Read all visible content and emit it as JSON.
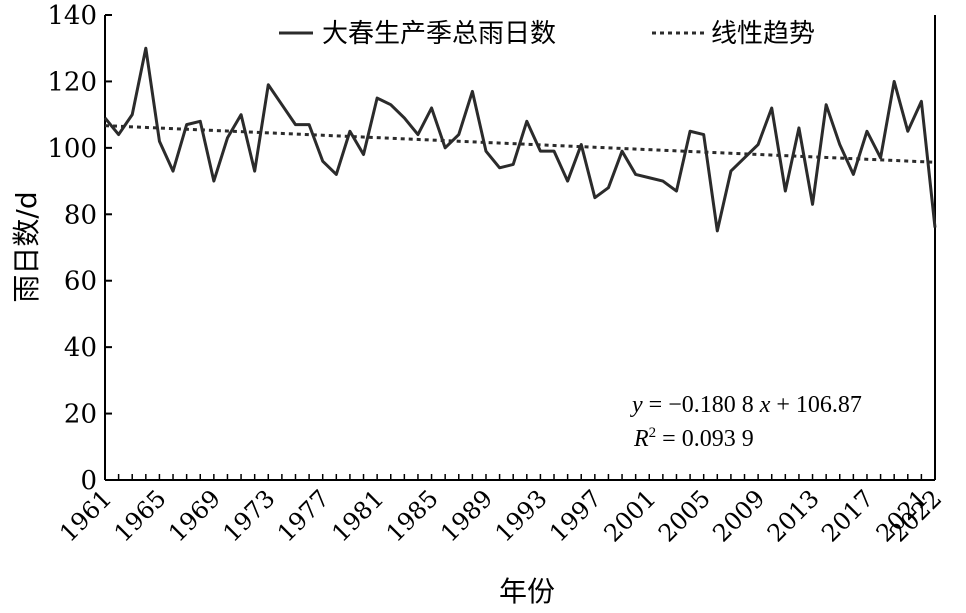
{
  "chart_data": {
    "type": "line",
    "title": "",
    "xlabel": "年份",
    "ylabel": "雨日数/d",
    "xlim": [
      1961,
      2022
    ],
    "ylim": [
      0,
      140
    ],
    "yticks": [
      0,
      20,
      40,
      60,
      80,
      100,
      120,
      140
    ],
    "xtick_labels": [
      "1961",
      "1965",
      "1969",
      "1973",
      "1977",
      "1981",
      "1985",
      "1989",
      "1993",
      "1997",
      "2001",
      "2005",
      "2009",
      "2013",
      "2017",
      "2021",
      "2022"
    ],
    "grid": false,
    "legend_position": "top",
    "x": [
      1961,
      1962,
      1963,
      1964,
      1965,
      1966,
      1967,
      1968,
      1969,
      1970,
      1971,
      1972,
      1973,
      1974,
      1975,
      1976,
      1977,
      1978,
      1979,
      1980,
      1981,
      1982,
      1983,
      1984,
      1985,
      1986,
      1987,
      1988,
      1989,
      1990,
      1991,
      1992,
      1993,
      1994,
      1995,
      1996,
      1997,
      1998,
      1999,
      2000,
      2001,
      2002,
      2003,
      2004,
      2005,
      2006,
      2007,
      2008,
      2009,
      2010,
      2011,
      2012,
      2013,
      2014,
      2015,
      2016,
      2017,
      2018,
      2019,
      2020,
      2021,
      2022
    ],
    "series": [
      {
        "name": "大春生产季总雨日数",
        "style": "solid",
        "color": "#2b2b2b",
        "values": [
          109,
          104,
          110,
          130,
          102,
          93,
          107,
          108,
          90,
          103,
          110,
          93,
          119,
          113,
          107,
          107,
          96,
          92,
          105,
          98,
          115,
          113,
          109,
          104,
          112,
          100,
          104,
          117,
          99,
          94,
          95,
          108,
          99,
          99,
          90,
          101,
          85,
          88,
          99,
          92,
          91,
          90,
          87,
          105,
          104,
          75,
          93,
          97,
          101,
          112,
          87,
          106,
          83,
          113,
          101,
          92,
          105,
          97,
          120,
          105,
          114,
          76
        ]
      },
      {
        "name": "线性趋势",
        "style": "dotted",
        "color": "#2b2b2b",
        "trend": {
          "slope": -0.1808,
          "intercept": 106.87
        }
      }
    ],
    "annotations": {
      "equation": {
        "var_y": "y",
        "eq_middle": " = −0.180 8 ",
        "var_x": "x",
        "eq_tail": " + 106.87"
      },
      "r2": {
        "var_r": "R",
        "sup": "2",
        "tail": " = 0.093 9"
      }
    }
  }
}
